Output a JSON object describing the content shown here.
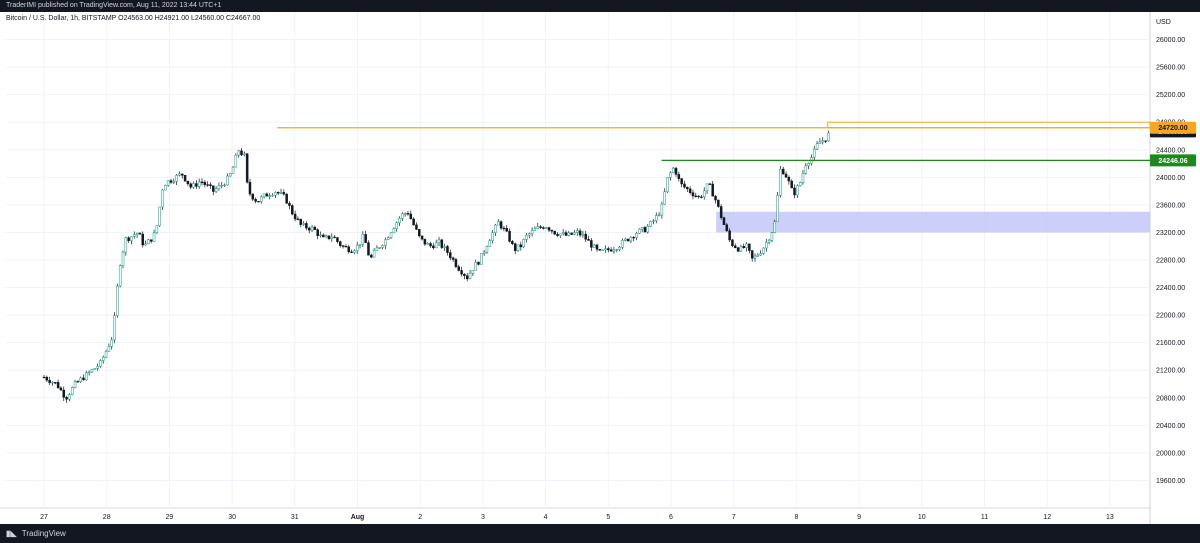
{
  "header": {
    "published_text": "TraderIMI published on TradingView.com, Aug 11, 2022 13:44 UTC+1"
  },
  "legend": {
    "text": "Bitcoin / U.S. Dollar, 1h, BITSTAMP  O24563.00  H24921.00  L24560.00  C24667.00"
  },
  "footer": {
    "brand": "TradingView",
    "logo_icon": "tradingview-logo-icon"
  },
  "chart_data": {
    "type": "candlestick",
    "symbol": "Bitcoin / U.S. Dollar",
    "timeframe": "1h",
    "exchange": "BITSTAMP",
    "ohlc_last": {
      "open": 24563.0,
      "high": 24921.0,
      "low": 24560.0,
      "close": 24667.0
    },
    "y_axis": {
      "currency": "USD",
      "ylim": [
        19200,
        26400
      ],
      "ticks": [
        "26000.00",
        "25600.00",
        "25200.00",
        "24800.00",
        "24400.00",
        "24000.00",
        "23600.00",
        "23200.00",
        "22800.00",
        "22400.00",
        "22000.00",
        "21600.00",
        "21200.00",
        "20800.00",
        "20400.00",
        "20000.00",
        "19600.00"
      ],
      "tick_values": [
        26000,
        25600,
        25200,
        24800,
        24400,
        24000,
        23600,
        23200,
        22800,
        22400,
        22000,
        21600,
        21200,
        20800,
        20400,
        20000,
        19600
      ]
    },
    "x_axis": {
      "ticks": [
        "27",
        "28",
        "29",
        "30",
        "31",
        "Aug",
        "2",
        "3",
        "4",
        "5",
        "6",
        "7",
        "8",
        "9",
        "10",
        "11",
        "12",
        "13"
      ]
    },
    "grid": true,
    "price_series": [
      [
        0,
        21100
      ],
      [
        0.2,
        21000
      ],
      [
        0.35,
        20800
      ],
      [
        0.5,
        21000
      ],
      [
        0.7,
        21150
      ],
      [
        0.9,
        21300
      ],
      [
        1.0,
        21500
      ],
      [
        1.1,
        21700
      ],
      [
        1.2,
        22700
      ],
      [
        1.3,
        23100
      ],
      [
        1.5,
        23200
      ],
      [
        1.6,
        23000
      ],
      [
        1.75,
        23150
      ],
      [
        1.8,
        23300
      ],
      [
        1.9,
        23900
      ],
      [
        2.0,
        23950
      ],
      [
        2.2,
        24050
      ],
      [
        2.35,
        23850
      ],
      [
        2.5,
        23950
      ],
      [
        2.7,
        23800
      ],
      [
        2.85,
        23900
      ],
      [
        2.95,
        24000
      ],
      [
        3.0,
        24100
      ],
      [
        3.1,
        24400
      ],
      [
        3.2,
        24300
      ],
      [
        3.25,
        23800
      ],
      [
        3.4,
        23650
      ],
      [
        3.55,
        23750
      ],
      [
        3.7,
        23800
      ],
      [
        3.85,
        23700
      ],
      [
        3.95,
        23500
      ],
      [
        4.1,
        23300
      ],
      [
        4.3,
        23250
      ],
      [
        4.45,
        23100
      ],
      [
        4.6,
        23150
      ],
      [
        4.75,
        23000
      ],
      [
        4.9,
        22950
      ],
      [
        5.0,
        23000
      ],
      [
        5.1,
        23150
      ],
      [
        5.2,
        22800
      ],
      [
        5.3,
        22950
      ],
      [
        5.45,
        23100
      ],
      [
        5.55,
        23250
      ],
      [
        5.7,
        23450
      ],
      [
        5.8,
        23500
      ],
      [
        5.9,
        23300
      ],
      [
        6.0,
        23100
      ],
      [
        6.15,
        23000
      ],
      [
        6.3,
        23050
      ],
      [
        6.45,
        22900
      ],
      [
        6.6,
        22700
      ],
      [
        6.75,
        22550
      ],
      [
        6.85,
        22700
      ],
      [
        6.95,
        22800
      ],
      [
        7.1,
        23100
      ],
      [
        7.25,
        23350
      ],
      [
        7.4,
        23150
      ],
      [
        7.5,
        22950
      ],
      [
        7.6,
        23000
      ],
      [
        7.7,
        23150
      ],
      [
        7.85,
        23250
      ],
      [
        8.0,
        23300
      ],
      [
        8.15,
        23200
      ],
      [
        8.35,
        23150
      ],
      [
        8.5,
        23200
      ],
      [
        8.6,
        23150
      ],
      [
        8.7,
        23050
      ],
      [
        8.85,
        22900
      ],
      [
        9.0,
        22950
      ],
      [
        9.15,
        23000
      ],
      [
        9.3,
        23100
      ],
      [
        9.45,
        23200
      ],
      [
        9.6,
        23250
      ],
      [
        9.75,
        23400
      ],
      [
        9.85,
        23550
      ],
      [
        9.95,
        24000
      ],
      [
        10.05,
        24150
      ],
      [
        10.15,
        23900
      ],
      [
        10.3,
        23800
      ],
      [
        10.45,
        23700
      ],
      [
        10.6,
        23900
      ],
      [
        10.7,
        23700
      ],
      [
        10.85,
        23300
      ],
      [
        10.95,
        23050
      ],
      [
        11.1,
        22950
      ],
      [
        11.2,
        23000
      ],
      [
        11.3,
        22800
      ],
      [
        11.45,
        22950
      ],
      [
        11.55,
        23100
      ],
      [
        11.65,
        23300
      ],
      [
        11.75,
        24150
      ],
      [
        11.85,
        24000
      ],
      [
        11.95,
        23750
      ],
      [
        12.05,
        23900
      ],
      [
        12.15,
        24200
      ],
      [
        12.25,
        24300
      ],
      [
        12.35,
        24500
      ],
      [
        12.45,
        24550
      ],
      [
        12.55,
        24667
      ]
    ],
    "annotations": [
      {
        "label": "orange horizontal resistance line",
        "type": "hline",
        "color": "#f5a623",
        "y": 24720
      },
      {
        "label": "green horizontal level line",
        "type": "hline",
        "color": "#1b8a1b",
        "y": 24246.06
      },
      {
        "label": "blue demand zone",
        "type": "zone",
        "color": "#c7caf8",
        "y_from": 23200,
        "y_to": 23500
      }
    ],
    "price_labels": [
      {
        "text": "24667.00",
        "value": 24667,
        "bg": "#131722"
      },
      {
        "text": "24246.06",
        "value": 24246.06,
        "bg": "#1b8a1b"
      },
      {
        "text": "24720.00",
        "value": 24720,
        "bg": "#f5a623"
      }
    ]
  }
}
